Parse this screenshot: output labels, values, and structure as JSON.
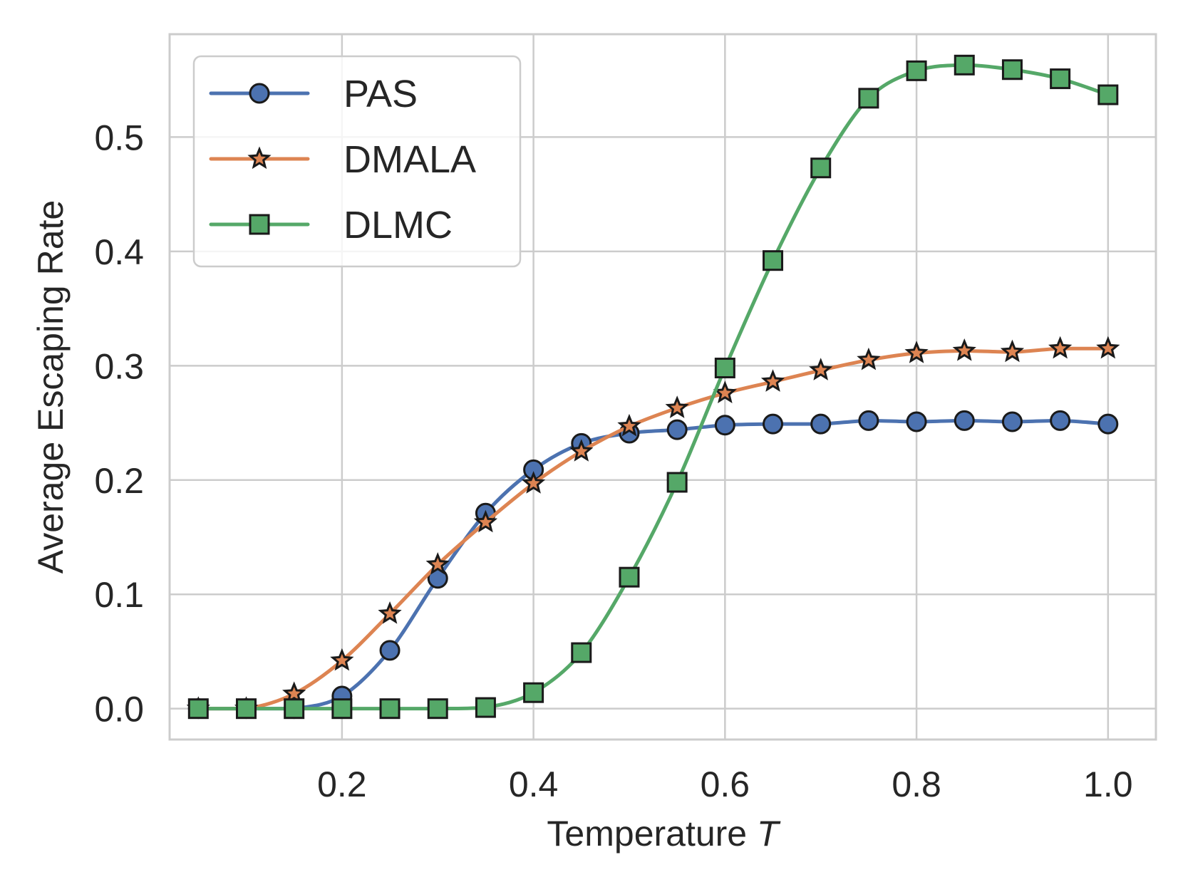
{
  "chart_data": {
    "type": "line",
    "title": "",
    "xlabel": "Temperature",
    "xlabel_var": "T",
    "ylabel": "Average Escaping Rate",
    "xlim": [
      0.02,
      1.05
    ],
    "ylim": [
      -0.027,
      0.59
    ],
    "xticks": [
      0.2,
      0.4,
      0.6,
      0.8,
      1.0
    ],
    "xtick_labels": [
      "0.2",
      "0.4",
      "0.6",
      "0.8",
      "1.0"
    ],
    "yticks": [
      0.0,
      0.1,
      0.2,
      0.3,
      0.4,
      0.5
    ],
    "ytick_labels": [
      "0.0",
      "0.1",
      "0.2",
      "0.3",
      "0.4",
      "0.5"
    ],
    "grid": true,
    "legend_position": "top-left",
    "x": [
      0.05,
      0.1,
      0.15,
      0.2,
      0.25,
      0.3,
      0.35,
      0.4,
      0.45,
      0.5,
      0.55,
      0.6,
      0.65,
      0.7,
      0.75,
      0.8,
      0.85,
      0.9,
      0.95,
      1.0
    ],
    "series": [
      {
        "name": "PAS",
        "color": "#4c72b0",
        "marker": "circle",
        "values": [
          0.0,
          0.0,
          0.0,
          0.011,
          0.051,
          0.114,
          0.171,
          0.209,
          0.232,
          0.241,
          0.244,
          0.248,
          0.249,
          0.249,
          0.252,
          0.251,
          0.252,
          0.251,
          0.252,
          0.249
        ]
      },
      {
        "name": "DMALA",
        "color": "#dd8452",
        "marker": "star",
        "values": [
          0.0,
          0.0,
          0.013,
          0.042,
          0.083,
          0.126,
          0.163,
          0.197,
          0.225,
          0.247,
          0.263,
          0.276,
          0.286,
          0.296,
          0.305,
          0.311,
          0.313,
          0.312,
          0.315,
          0.315
        ]
      },
      {
        "name": "DLMC",
        "color": "#55a868",
        "marker": "square",
        "values": [
          0.0,
          0.0,
          0.0,
          0.0,
          0.0,
          0.0,
          0.001,
          0.014,
          0.049,
          0.115,
          0.198,
          0.298,
          0.392,
          0.473,
          0.534,
          0.558,
          0.563,
          0.559,
          0.551,
          0.537
        ]
      }
    ]
  }
}
